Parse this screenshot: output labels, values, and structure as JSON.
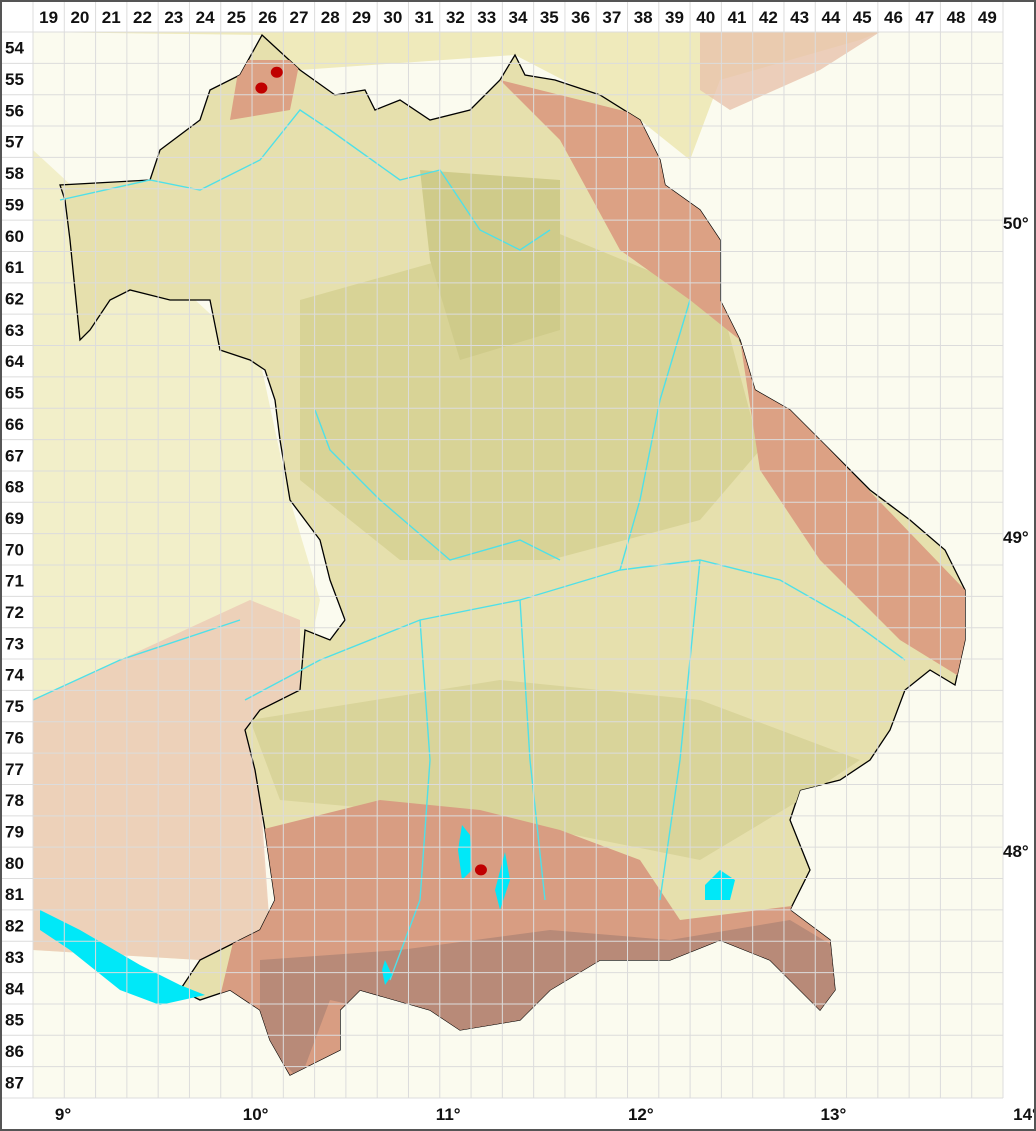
{
  "grid": {
    "columns": [
      "19",
      "20",
      "21",
      "22",
      "23",
      "24",
      "25",
      "26",
      "27",
      "28",
      "29",
      "30",
      "31",
      "32",
      "33",
      "34",
      "35",
      "36",
      "37",
      "38",
      "39",
      "40",
      "41",
      "42",
      "43",
      "44",
      "45",
      "46",
      "47",
      "48",
      "49"
    ],
    "rows": [
      "54",
      "55",
      "56",
      "57",
      "58",
      "59",
      "60",
      "61",
      "62",
      "63",
      "64",
      "65",
      "66",
      "67",
      "68",
      "69",
      "70",
      "71",
      "72",
      "73",
      "74",
      "75",
      "76",
      "77",
      "78",
      "79",
      "80",
      "81",
      "82",
      "83",
      "84",
      "85",
      "86",
      "87"
    ]
  },
  "longitude_labels": [
    {
      "deg": 9,
      "label": "9°"
    },
    {
      "deg": 10,
      "label": "10°"
    },
    {
      "deg": 11,
      "label": "11°"
    },
    {
      "deg": 12,
      "label": "12°"
    },
    {
      "deg": 13,
      "label": "13°"
    },
    {
      "deg": 14,
      "label": "14°"
    }
  ],
  "latitude_labels": [
    {
      "deg": 50,
      "label": "50°"
    },
    {
      "deg": 49,
      "label": "49°"
    },
    {
      "deg": 48,
      "label": "48°"
    }
  ],
  "occurrences": [
    {
      "lon": 10.11,
      "lat": 50.48
    },
    {
      "lon": 10.03,
      "lat": 50.43
    },
    {
      "lon": 11.17,
      "lat": 47.94
    }
  ],
  "colors": {
    "occurrence": "#c00000",
    "water": "#00e8f8",
    "lowland": "#e9e4b4",
    "hills": "#d6d294",
    "uplands": "#dc9f86",
    "outside": "#f5f2d6",
    "border": "#000000"
  }
}
